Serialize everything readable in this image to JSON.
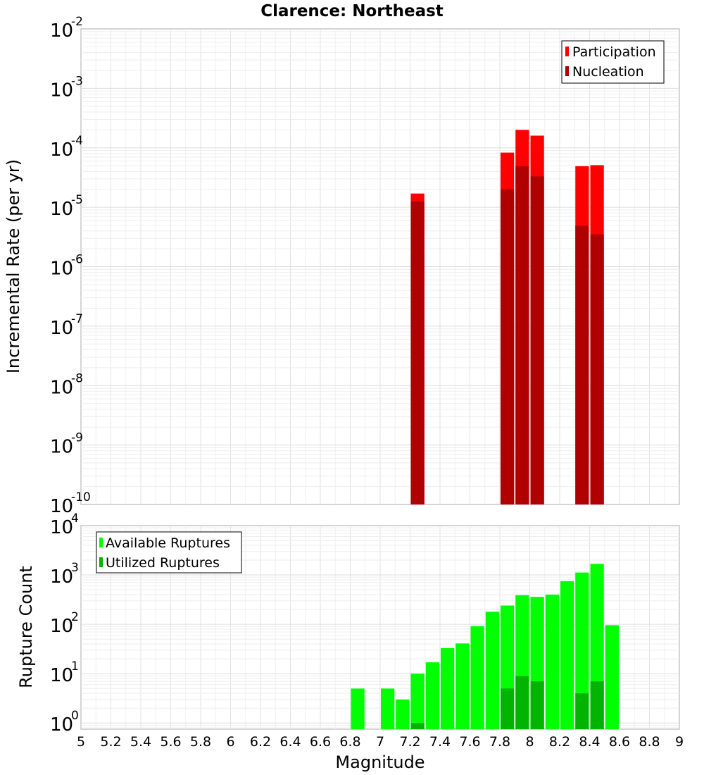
{
  "chart_data": [
    {
      "type": "bar",
      "title": "Clarence: Northeast",
      "xlabel": "",
      "ylabel": "Incremental Rate (per yr)",
      "yscale": "log",
      "xlim": [
        5,
        9
      ],
      "ylim": [
        1e-10,
        0.01
      ],
      "ytick_exponents": [
        -10,
        -9,
        -8,
        -7,
        -6,
        -5,
        -4,
        -3,
        -2
      ],
      "legend_position": "top-right",
      "bar_width": 0.1,
      "series": [
        {
          "name": "Participation",
          "color": "#ff0000",
          "x": [
            7.25,
            7.85,
            7.95,
            8.05,
            8.35,
            8.45
          ],
          "values": [
            1.7e-05,
            8.3e-05,
            0.0002,
            0.00016,
            4.9e-05,
            5.1e-05
          ]
        },
        {
          "name": "Nucleation",
          "color": "#b00000",
          "x": [
            7.25,
            7.85,
            7.95,
            8.05,
            8.35,
            8.45
          ],
          "values": [
            1.25e-05,
            2e-05,
            4.9e-05,
            3.3e-05,
            4.9e-06,
            3.5e-06
          ]
        }
      ]
    },
    {
      "type": "bar",
      "title": "",
      "xlabel": "Magnitude",
      "ylabel": "Rupture Count",
      "yscale": "log",
      "xlim": [
        5,
        9
      ],
      "ylim": [
        0.75,
        10000.0
      ],
      "ytick_exponents": [
        0,
        1,
        2,
        3,
        4
      ],
      "xticks": [
        "5",
        "5.2",
        "5.4",
        "5.6",
        "5.8",
        "6",
        "6.2",
        "6.4",
        "6.6",
        "6.8",
        "7",
        "7.2",
        "7.4",
        "7.6",
        "7.8",
        "8",
        "8.2",
        "8.4",
        "8.6",
        "8.8",
        "9"
      ],
      "legend_position": "top-left",
      "bar_width": 0.1,
      "series": [
        {
          "name": "Available Ruptures",
          "color": "#00ff00",
          "x": [
            6.85,
            7.05,
            7.15,
            7.25,
            7.35,
            7.45,
            7.55,
            7.65,
            7.75,
            7.85,
            7.95,
            8.05,
            8.15,
            8.25,
            8.35,
            8.45,
            8.55
          ],
          "values": [
            5,
            5,
            3,
            10,
            17,
            33,
            41,
            92,
            180,
            240,
            390,
            360,
            400,
            750,
            1120,
            1680,
            96
          ]
        },
        {
          "name": "Utilized Ruptures",
          "color": "#00b400",
          "x": [
            7.25,
            7.85,
            7.95,
            8.05,
            8.35,
            8.45
          ],
          "values": [
            1,
            5,
            9,
            7,
            4,
            7
          ]
        }
      ]
    }
  ]
}
